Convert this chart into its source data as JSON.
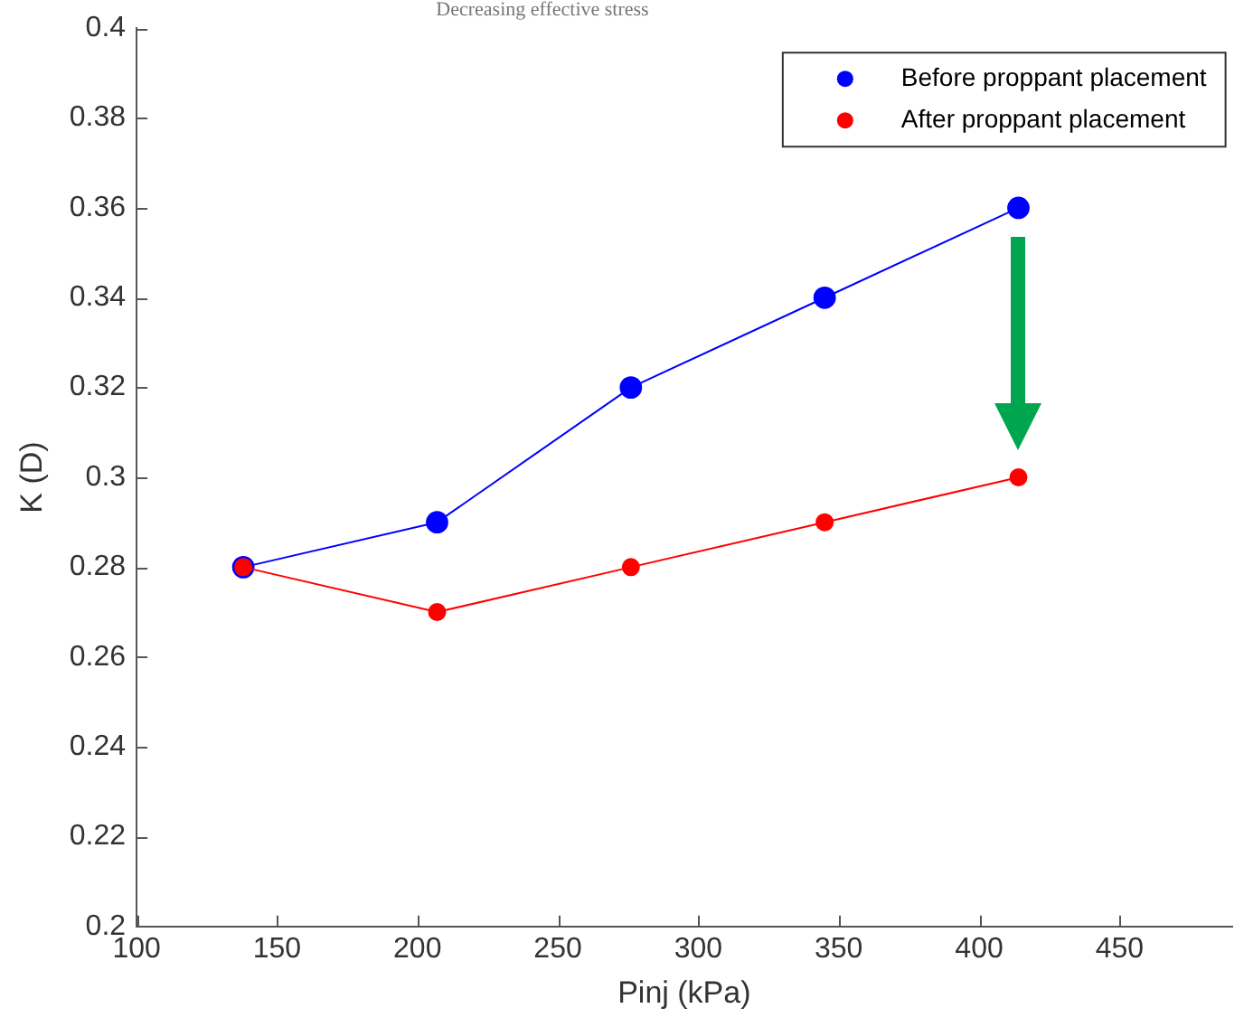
{
  "chart_data": {
    "type": "line",
    "xlabel": "Pinj (kPa)",
    "ylabel": "K (D)",
    "annotations": [
      "Decreasing effective stress"
    ],
    "xlim": [
      100,
      490
    ],
    "xticks": [
      100,
      150,
      200,
      250,
      300,
      350,
      400,
      450
    ],
    "ylim": [
      0.2,
      0.4
    ],
    "yticks": [
      0.2,
      0.22,
      0.24,
      0.26,
      0.28,
      0.3,
      0.32,
      0.34,
      0.36,
      0.38,
      0.4
    ],
    "x": [
      138,
      207,
      276,
      345,
      414
    ],
    "series": [
      {
        "name": "Before proppant placement",
        "color": "#0000ff",
        "values": [
          0.28,
          0.29,
          0.32,
          0.34,
          0.36
        ]
      },
      {
        "name": "After proppant placement",
        "color": "#ff0000",
        "values": [
          0.28,
          0.27,
          0.28,
          0.29,
          0.3
        ]
      }
    ],
    "marker": "circle",
    "line_style": "solid",
    "grid": false,
    "legend": "top right"
  }
}
